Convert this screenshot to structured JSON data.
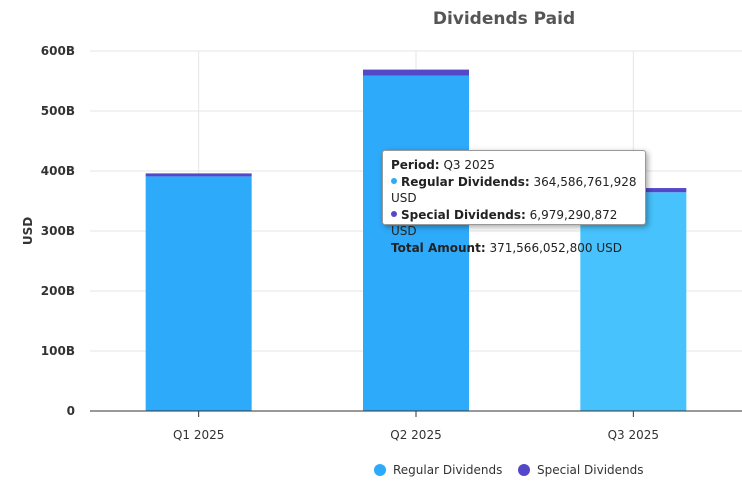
{
  "chart_data": {
    "type": "bar",
    "stacked": true,
    "title": "Dividends Paid",
    "ylabel": "USD",
    "xlabel": "",
    "categories": [
      "Q1 2025",
      "Q2 2025",
      "Q3 2025"
    ],
    "ylim": [
      0,
      600000000000
    ],
    "yticks": [
      {
        "value": 0,
        "label": "0"
      },
      {
        "value": 100000000000,
        "label": "100B"
      },
      {
        "value": 200000000000,
        "label": "200B"
      },
      {
        "value": 300000000000,
        "label": "300B"
      },
      {
        "value": 400000000000,
        "label": "400B"
      },
      {
        "value": 500000000000,
        "label": "500B"
      },
      {
        "value": 600000000000,
        "label": "600B"
      }
    ],
    "series": [
      {
        "name": "Regular Dividends",
        "color": "#2eaafa",
        "values": [
          391000000000,
          559000000000,
          364586761928
        ]
      },
      {
        "name": "Special Dividends",
        "color": "#5448c8",
        "values": [
          5000000000,
          10000000000,
          6979290872
        ]
      }
    ],
    "highlight_color": "#47c2fc",
    "highlight_index": 2,
    "grid": true,
    "legend_position": "bottom"
  },
  "tooltip": {
    "period_label": "Period:",
    "period_value": "Q3 2025",
    "regular_label": "Regular Dividends:",
    "regular_value": "364,586,761,928 USD",
    "special_label": "Special Dividends:",
    "special_value": "6,979,290,872 USD",
    "total_label": "Total Amount:",
    "total_value": "371,566,052,800 USD"
  }
}
